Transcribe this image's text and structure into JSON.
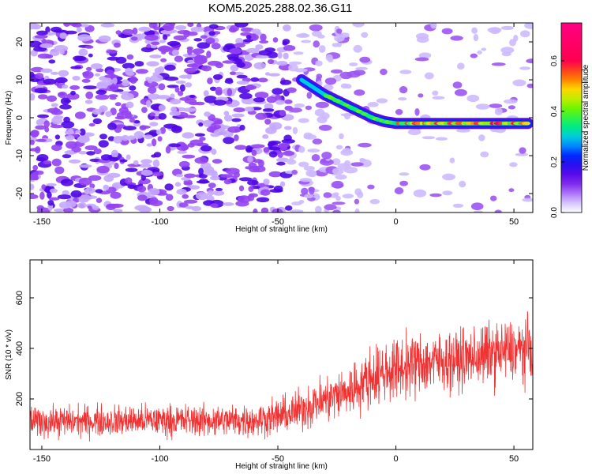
{
  "title": "KOM5.2025.288.02.36.G11",
  "chart_data": [
    {
      "type": "heatmap",
      "name": "spectrogram",
      "xlabel": "Height of straight line (km)",
      "ylabel": "Frequency (Hz)",
      "xlim": [
        -155,
        58
      ],
      "ylim": [
        -25,
        25
      ],
      "xticks": [
        -150,
        -100,
        -50,
        0,
        50
      ],
      "yticks": [
        -20,
        -10,
        0,
        10,
        20
      ],
      "trace": {
        "description": "dominant spectral ridge",
        "x": [
          -40,
          -35,
          -30,
          -25,
          -20,
          -15,
          -10,
          -5,
          0,
          10,
          20,
          30,
          40,
          50,
          56
        ],
        "y": [
          10,
          8,
          6,
          4.5,
          3,
          1.5,
          0,
          -1,
          -1.5,
          -1.5,
          -1.5,
          -1.5,
          -1.5,
          -1.5,
          -1.5
        ]
      },
      "colorbar": {
        "label": "Normalized spectral amplitude",
        "range": [
          0,
          0.75
        ],
        "ticks": [
          0.0,
          0.2,
          0.4,
          0.6
        ]
      }
    },
    {
      "type": "line",
      "name": "snr",
      "xlabel": "Height of straight line (km)",
      "ylabel": "SNR (10 * v/v)",
      "xlim": [
        -155,
        58
      ],
      "ylim": [
        0,
        750
      ],
      "xticks": [
        -150,
        -100,
        -50,
        0,
        50
      ],
      "yticks": [
        200,
        400,
        600
      ],
      "color": "#f03232",
      "envelope": {
        "x": [
          -155,
          -100,
          -60,
          -45,
          -35,
          -20,
          -10,
          0,
          10,
          20,
          30,
          40,
          50,
          58
        ],
        "mean": [
          110,
          115,
          115,
          140,
          180,
          230,
          290,
          320,
          340,
          350,
          360,
          380,
          390,
          400
        ],
        "amplitude": [
          90,
          90,
          95,
          110,
          130,
          150,
          170,
          180,
          180,
          170,
          170,
          180,
          180,
          180
        ]
      }
    }
  ]
}
